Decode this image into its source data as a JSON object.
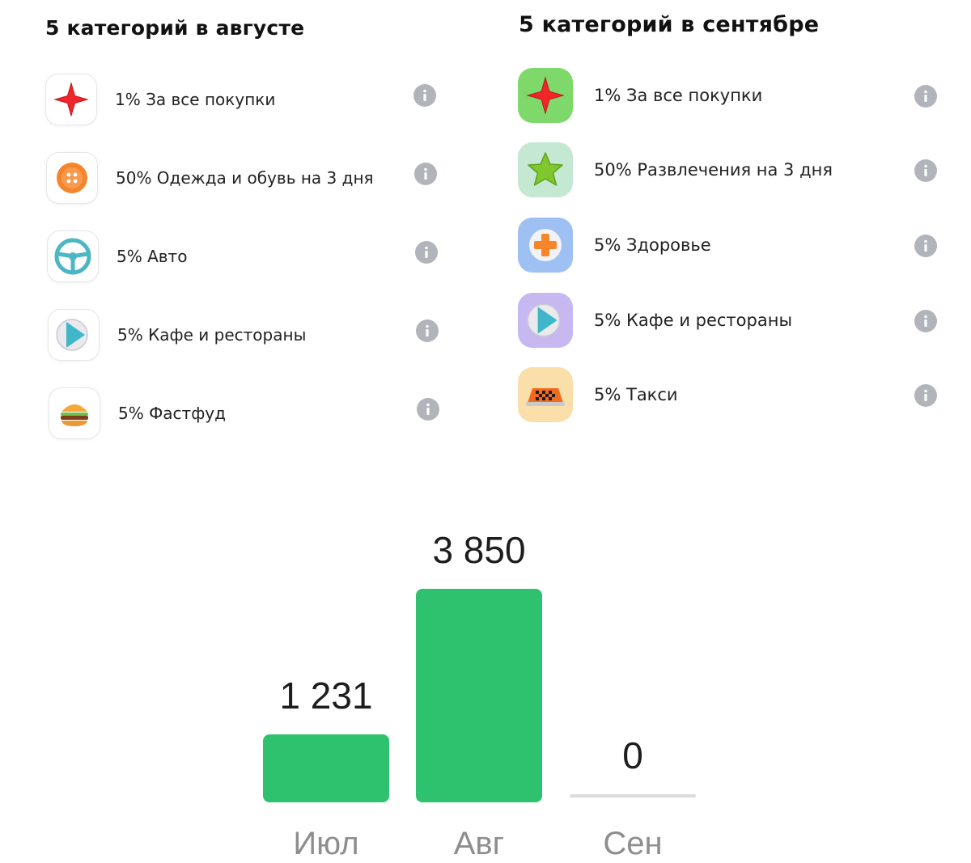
{
  "august": {
    "title": "5 категорий в августе",
    "items": [
      {
        "label": "1% За все покупки",
        "icon": "red-star-icon"
      },
      {
        "label": "50% Одежда и обувь на 3 дня",
        "icon": "button-icon"
      },
      {
        "label": "5% Авто",
        "icon": "steering-wheel-icon"
      },
      {
        "label": "5% Кафе и рестораны",
        "icon": "plate-play-icon"
      },
      {
        "label": "5% Фастфуд",
        "icon": "burger-icon"
      }
    ]
  },
  "september": {
    "title": "5 категорий в сентябре",
    "items": [
      {
        "label": "1% За все покупки",
        "icon": "red-star-icon",
        "tile_color": "#7ed86a"
      },
      {
        "label": "50% Развлечения на 3 дня",
        "icon": "green-star-icon",
        "tile_color": "#c4e8d2"
      },
      {
        "label": "5% Здоровье",
        "icon": "medical-cross-icon",
        "tile_color": "#9fc0f3"
      },
      {
        "label": "5% Кафе и рестораны",
        "icon": "plate-play-icon",
        "tile_color": "#c7b8f2"
      },
      {
        "label": "5% Такси",
        "icon": "taxi-sign-icon",
        "tile_color": "#fbdfaa"
      }
    ]
  },
  "info_icon": "info-icon",
  "colors": {
    "bar": "#2fc26e",
    "empty_bar": "#dcdcdc",
    "month_label": "#8e8e8e",
    "info": "#b1b4bb"
  },
  "chart_data": {
    "type": "bar",
    "categories": [
      "Июл",
      "Авг",
      "Сен"
    ],
    "values": [
      1231,
      3850,
      0
    ],
    "value_labels": [
      "1 231",
      "3 850",
      "0"
    ],
    "title": "",
    "xlabel": "",
    "ylabel": "",
    "ylim": [
      0,
      3850
    ],
    "grid": false
  }
}
